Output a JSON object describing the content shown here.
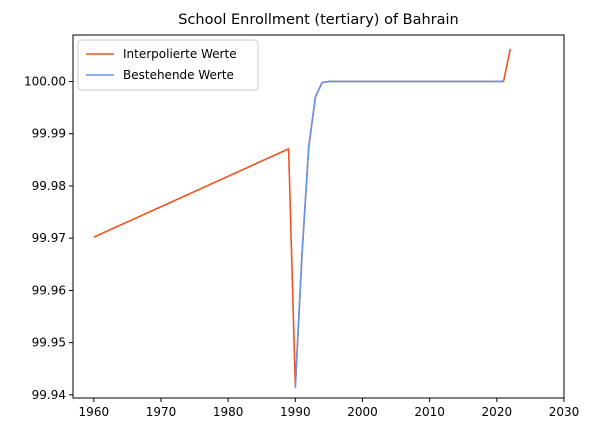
{
  "chart_data": {
    "type": "line",
    "title": "School Enrollment (tertiary) of Bahrain",
    "xlabel": "",
    "ylabel": "",
    "xlim": [
      1956.9,
      2030
    ],
    "ylim": [
      99.9394,
      100.0089
    ],
    "x_ticks": [
      1960,
      1970,
      1980,
      1990,
      2000,
      2010,
      2020,
      2030
    ],
    "y_ticks": [
      99.94,
      99.95,
      99.96,
      99.97,
      99.98,
      99.99,
      100.0
    ],
    "y_tick_labels": [
      "99.94",
      "99.95",
      "99.96",
      "99.97",
      "99.98",
      "99.99",
      "100.00"
    ],
    "grid": false,
    "legend_position": "top-left",
    "series": [
      {
        "name": "Interpolierte Werte",
        "color": "#f4511e",
        "x": [
          1960,
          1989,
          1990,
          1991,
          1992,
          1993,
          1994,
          1995,
          2021,
          2022
        ],
        "y": [
          99.9702,
          99.9871,
          99.9415,
          99.967,
          99.9875,
          99.9971,
          99.9998,
          100.0,
          100.0,
          100.0062
        ]
      },
      {
        "name": "Bestehende Werte",
        "color": "#6495ed",
        "x": [
          1990,
          1991,
          1992,
          1993,
          1994,
          1995,
          2021
        ],
        "y": [
          99.9415,
          99.967,
          99.9875,
          99.9971,
          99.9998,
          100.0,
          100.0
        ]
      }
    ]
  }
}
